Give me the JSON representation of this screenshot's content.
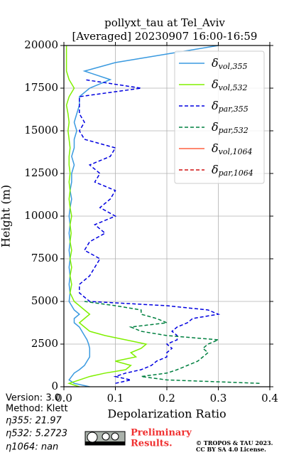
{
  "chart_data": {
    "type": "profile",
    "title": [
      "pollyxt_tau at Tel_Aviv",
      "[Averaged] 20230907 16:00-16:59"
    ],
    "xlabel": "Depolarization Ratio",
    "ylabel": "Height (m)",
    "xlim": [
      0,
      0.4
    ],
    "xticks": [
      {
        "value": 0,
        "label": "0.0"
      },
      0.1,
      0.2,
      0.3,
      0.4
    ],
    "ylim": [
      0,
      20000
    ],
    "yticks": [
      0,
      2500,
      5000,
      7500,
      10000,
      12500,
      15000,
      17500,
      20000
    ],
    "grid": true,
    "legend": "upper right",
    "heights": [
      0,
      200,
      400,
      600,
      800,
      1000,
      1250,
      1500,
      1750,
      2000,
      2250,
      2500,
      2750,
      3000,
      3250,
      3500,
      3750,
      4000,
      4250,
      4500,
      4750,
      5000,
      5500,
      6000,
      6500,
      7000,
      7500,
      8000,
      8500,
      9000,
      9500,
      10000,
      10500,
      11000,
      11500,
      12000,
      12500,
      13000,
      13500,
      14000,
      14500,
      15000,
      15500,
      16000,
      16500,
      17000,
      17500,
      18000,
      18500,
      19000,
      19500,
      20000
    ],
    "series": [
      {
        "name": "δvol,355",
        "color": "#3a9ae0",
        "linestyle": "solid",
        "values": [
          0.05,
          0.02,
          0.01,
          0.015,
          0.02,
          0.03,
          0.04,
          0.045,
          0.05,
          0.05,
          0.05,
          0.048,
          0.045,
          0.04,
          0.035,
          0.03,
          0.02,
          0.02,
          0.03,
          0.02,
          0.015,
          0.01,
          0.012,
          0.01,
          0.012,
          0.01,
          0.012,
          0.01,
          0.012,
          0.01,
          0.012,
          0.01,
          0.012,
          0.015,
          0.012,
          0.015,
          0.015,
          0.02,
          0.015,
          0.02,
          0.02,
          0.025,
          0.02,
          0.025,
          0.03,
          0.03,
          0.05,
          0.09,
          0.04,
          0.1,
          0.2,
          0.3
        ]
      },
      {
        "name": "δvol,532",
        "color": "#80f000",
        "linestyle": "solid",
        "values": [
          0.03,
          0.01,
          0.03,
          0.05,
          0.08,
          0.12,
          0.13,
          0.1,
          0.14,
          0.13,
          0.15,
          0.16,
          0.12,
          0.08,
          0.05,
          0.04,
          0.03,
          0.04,
          0.05,
          0.04,
          0.03,
          0.02,
          0.012,
          0.015,
          0.012,
          0.015,
          0.012,
          0.015,
          0.012,
          0.014,
          0.012,
          0.015,
          0.012,
          0.01,
          0.012,
          0.01,
          0.012,
          0.01,
          0.01,
          0.012,
          0.01,
          0.008,
          0.01,
          0.008,
          0.005,
          0.01,
          0.02,
          0.01,
          0.005,
          0.005,
          0.005,
          0.005
        ]
      },
      {
        "name": "δpar,355",
        "color": "#0000e0",
        "linestyle": "dashed",
        "values": [
          null,
          0.1,
          0.13,
          0.1,
          0.12,
          0.15,
          0.17,
          0.18,
          0.2,
          0.2,
          0.21,
          0.2,
          0.22,
          0.22,
          0.21,
          0.22,
          0.24,
          0.25,
          0.3,
          0.28,
          0.2,
          0.05,
          0.03,
          0.03,
          0.05,
          0.06,
          0.07,
          0.04,
          0.05,
          0.08,
          0.06,
          0.1,
          0.07,
          0.09,
          0.1,
          0.06,
          0.07,
          0.05,
          0.09,
          0.1,
          0.04,
          0.03,
          0.04,
          0.03,
          0.03,
          0.03,
          0.15,
          0.04,
          null,
          null,
          null,
          null
        ]
      },
      {
        "name": "δpar,532",
        "color": "#008040",
        "linestyle": "dashed",
        "values": [
          null,
          0.38,
          0.2,
          0.15,
          0.2,
          0.22,
          0.24,
          0.26,
          0.27,
          0.28,
          0.27,
          0.28,
          0.3,
          0.2,
          0.15,
          0.13,
          0.2,
          0.18,
          0.15,
          0.15,
          0.1,
          0.04,
          null,
          null,
          null,
          null,
          null,
          null,
          null,
          null,
          null,
          null,
          null,
          null,
          null,
          null,
          null,
          null,
          null,
          null,
          null,
          null,
          null,
          null,
          null,
          null,
          null,
          null,
          null,
          null,
          null,
          null
        ]
      },
      {
        "name": "δvol,1064",
        "color": "#ff6040",
        "linestyle": "solid",
        "values": [
          null,
          null,
          null,
          null,
          null,
          null,
          null,
          null,
          null,
          null,
          null,
          null,
          null,
          null,
          null,
          null,
          null,
          null,
          null,
          null,
          null,
          null,
          null,
          null,
          null,
          null,
          null,
          null,
          null,
          null,
          null,
          null,
          null,
          null,
          null,
          null,
          null,
          null,
          null,
          null,
          null,
          null,
          null,
          null,
          null,
          null,
          null,
          null,
          null,
          null,
          null,
          null
        ]
      },
      {
        "name": "δpar,1064",
        "color": "#d01010",
        "linestyle": "dashed",
        "values": [
          null,
          null,
          null,
          null,
          null,
          null,
          null,
          null,
          null,
          null,
          null,
          null,
          null,
          null,
          null,
          null,
          null,
          null,
          null,
          null,
          null,
          null,
          null,
          null,
          null,
          null,
          null,
          null,
          null,
          null,
          null,
          null,
          null,
          null,
          null,
          null,
          null,
          null,
          null,
          null,
          null,
          null,
          null,
          null,
          null,
          null,
          null,
          null,
          null,
          null,
          null,
          null
        ]
      }
    ]
  },
  "footer": {
    "info": [
      "Version: 3.0",
      "Method: Klett",
      "η355:  21.97",
      "η532: 5.2723",
      "η1064:    nan"
    ],
    "notice": [
      "Preliminary",
      "Results."
    ],
    "copyright": [
      "© TROPOS & TAU 2023.",
      "CC BY SA 4.0 License."
    ]
  }
}
